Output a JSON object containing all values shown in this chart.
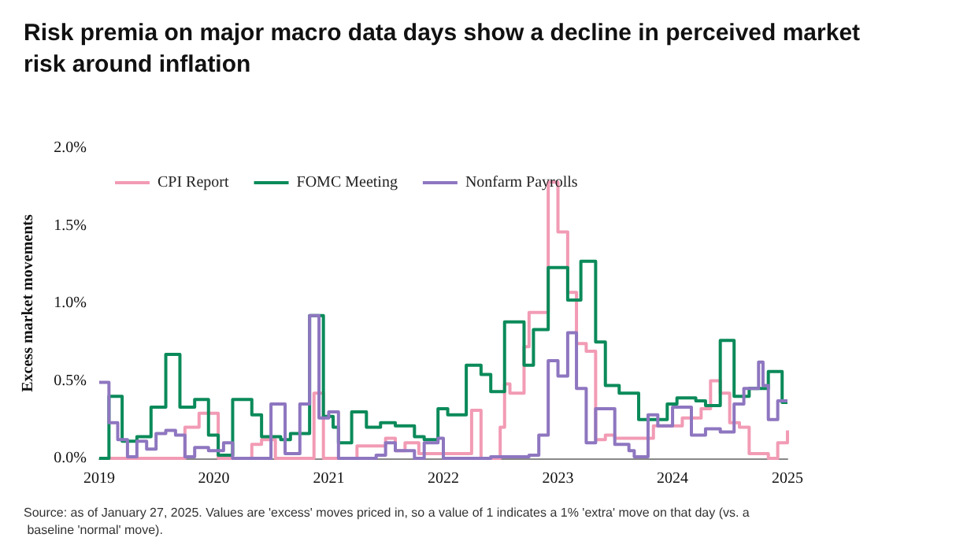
{
  "chart_data": {
    "type": "step",
    "title": "Risk premia on major macro data days show a decline in perceived market risk around inflation",
    "ylabel": "Excess market movements",
    "annotations": [
      "Source: as of January 27, 2025. Values are 'excess' moves priced in, so a value of 1 indicates a 1% 'extra' move on that day (vs. a baseline 'normal' move)."
    ],
    "xlim": [
      "2019-01-01",
      "2025-01-01"
    ],
    "xticks": [
      "2019",
      "2020",
      "2021",
      "2022",
      "2023",
      "2024",
      "2025"
    ],
    "ylim": [
      0,
      2
    ],
    "yticks": [
      {
        "value": 0,
        "label": "0.0%"
      },
      {
        "value": 0.5,
        "label": "0.5%"
      },
      {
        "value": 1,
        "label": "1.0%"
      },
      {
        "value": 1.5,
        "label": "1.5%"
      },
      {
        "value": 2,
        "label": "2.0%"
      }
    ],
    "grid": false,
    "legend": "top left",
    "marker": "none",
    "line_style": "solid",
    "series": [
      {
        "name": "CPI Report",
        "color": "#f29bb5",
        "x": [
          "2019-01-01",
          "2019-10-01",
          "2019-11-15",
          "2020-01-15",
          "2020-05-01",
          "2020-06-01",
          "2020-07-15",
          "2020-11-15",
          "2020-12-15",
          "2021-04-01",
          "2021-07-01",
          "2021-08-01",
          "2021-09-01",
          "2021-10-15",
          "2022-04-01",
          "2022-05-01",
          "2022-07-01",
          "2022-07-15",
          "2022-08-01",
          "2022-09-15",
          "2022-10-01",
          "2022-12-01",
          "2023-01-01",
          "2023-02-01",
          "2023-03-01",
          "2023-04-01",
          "2023-05-01",
          "2023-06-01",
          "2023-07-01",
          "2023-11-01",
          "2024-02-01",
          "2024-04-01",
          "2024-05-01",
          "2024-06-01",
          "2024-07-01",
          "2024-08-01",
          "2024-09-01",
          "2024-11-01",
          "2024-12-01",
          "2025-01-01"
        ],
        "values": [
          0,
          0.2,
          0.29,
          0,
          0.09,
          0.12,
          0,
          0.42,
          0,
          0.08,
          0.13,
          0.05,
          0.1,
          0.03,
          0.31,
          0,
          0.2,
          0.48,
          0.42,
          0.72,
          0.94,
          1.78,
          1.46,
          1.07,
          0.74,
          0.69,
          0.12,
          0.15,
          0.13,
          0.21,
          0.26,
          0.32,
          0.5,
          0.42,
          0.23,
          0.2,
          0.03,
          0,
          0.1,
          0.18
        ]
      },
      {
        "name": "FOMC Meeting",
        "color": "#0b8a5a",
        "x": [
          "2019-01-01",
          "2019-02-01",
          "2019-03-15",
          "2019-05-01",
          "2019-06-15",
          "2019-08-01",
          "2019-09-15",
          "2019-11-01",
          "2019-12-15",
          "2020-01-15",
          "2020-03-01",
          "2020-05-01",
          "2020-06-01",
          "2020-08-01",
          "2020-09-01",
          "2020-11-01",
          "2020-12-15",
          "2021-01-15",
          "2021-02-01",
          "2021-03-15",
          "2021-05-01",
          "2021-06-15",
          "2021-08-01",
          "2021-10-01",
          "2021-11-01",
          "2021-12-15",
          "2022-01-15",
          "2022-03-15",
          "2022-05-01",
          "2022-06-01",
          "2022-07-15",
          "2022-09-15",
          "2022-10-15",
          "2022-12-01",
          "2023-02-01",
          "2023-03-15",
          "2023-05-01",
          "2023-06-01",
          "2023-07-15",
          "2023-09-15",
          "2023-12-15",
          "2024-01-15",
          "2024-03-15",
          "2024-04-15",
          "2024-06-01",
          "2024-07-15",
          "2024-09-01",
          "2024-11-01",
          "2024-12-15",
          "2025-01-01"
        ],
        "values": [
          0,
          0.4,
          0.11,
          0.14,
          0.33,
          0.67,
          0.33,
          0.38,
          0.15,
          0.02,
          0.38,
          0.28,
          0.14,
          0.12,
          0.16,
          0.92,
          0.27,
          0.2,
          0.1,
          0.3,
          0.2,
          0.23,
          0.21,
          0.14,
          0.12,
          0.32,
          0.28,
          0.6,
          0.54,
          0.43,
          0.88,
          0.6,
          0.83,
          1.23,
          1.02,
          1.27,
          0.75,
          0.47,
          0.42,
          0.25,
          0.35,
          0.39,
          0.37,
          0.34,
          0.76,
          0.4,
          0.45,
          0.56,
          0.36,
          0.36
        ]
      },
      {
        "name": "Nonfarm Payrolls",
        "color": "#8e76c0",
        "x": [
          "2019-01-01",
          "2019-02-01",
          "2019-03-01",
          "2019-04-01",
          "2019-05-01",
          "2019-06-01",
          "2019-07-01",
          "2019-08-01",
          "2019-09-01",
          "2019-10-01",
          "2019-11-01",
          "2019-12-15",
          "2020-02-01",
          "2020-03-01",
          "2020-07-01",
          "2020-08-15",
          "2020-10-01",
          "2020-11-01",
          "2020-12-01",
          "2021-01-01",
          "2021-02-01",
          "2021-06-01",
          "2021-07-01",
          "2021-08-01",
          "2021-10-01",
          "2021-11-01",
          "2021-12-15",
          "2022-01-01",
          "2022-06-01",
          "2022-10-01",
          "2022-11-01",
          "2022-12-01",
          "2023-01-01",
          "2023-02-01",
          "2023-03-01",
          "2023-04-01",
          "2023-05-01",
          "2023-07-01",
          "2023-08-15",
          "2023-09-01",
          "2023-10-15",
          "2023-11-15",
          "2024-01-01",
          "2024-03-01",
          "2024-04-15",
          "2024-06-01",
          "2024-07-15",
          "2024-08-15",
          "2024-10-01",
          "2024-10-15",
          "2024-11-01",
          "2024-12-01",
          "2025-01-01"
        ],
        "values": [
          0.49,
          0.23,
          0.12,
          0.01,
          0.11,
          0.06,
          0.16,
          0.18,
          0.15,
          0.01,
          0.07,
          0.05,
          0.1,
          0,
          0.35,
          0.03,
          0.35,
          0.92,
          0.26,
          0.3,
          0,
          0.02,
          0.1,
          0.05,
          0,
          0.1,
          0.13,
          0,
          0.01,
          0.02,
          0.15,
          0.63,
          0.53,
          0.81,
          0.45,
          0.1,
          0.32,
          0.09,
          0.05,
          0.01,
          0.28,
          0.21,
          0.33,
          0.15,
          0.19,
          0.17,
          0.35,
          0.45,
          0.62,
          0.47,
          0.25,
          0.37,
          0.37
        ]
      }
    ]
  }
}
